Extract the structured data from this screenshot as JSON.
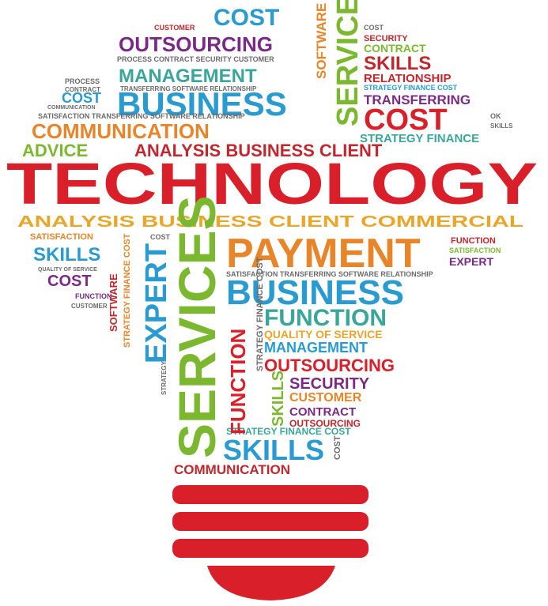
{
  "palette": {
    "red": "#d9202a",
    "green": "#7cb82f",
    "blue": "#2a9bd1",
    "orange": "#e8852a",
    "purple": "#7a2a84",
    "teal": "#3aa69a",
    "gray": "#6b6b6b",
    "darkred": "#c1272d"
  },
  "words": {
    "technology": "TECHNOLOGY",
    "cost_top": "COST",
    "customer_top": "CUSTOMER",
    "skills_tiny": "SKILLS",
    "process_v": "PROCESS",
    "software_v": "SOFTWARE",
    "outsourcing_top": "OUTSOURCING",
    "process_line": "PROCESS CONTRACT SECURITY CUSTOMER",
    "transferring_line": "TRANSFERRING SOFTWARE RELATIONSHIP",
    "management_top": "MANAGEMENT",
    "satisfaction_line": "SATISFACTION TRANSFERRING SOFTWARE RELATIONSHIP",
    "business_top": "BUSINESS",
    "services_top_v": "SERVICES",
    "software_top_v": "SOFTWARE",
    "ok_1": "OK",
    "cost_r1": "COST",
    "customer_r1": "CUSTOMER",
    "security_r": "SECURITY",
    "contract_r": "CONTRACT",
    "skills_r": "SKILLS",
    "ok_2": "OK",
    "relationship_r": "RELATIONSHIP",
    "strategy_finance_cost_r": "STRATEGY FINANCE COST",
    "transferring_r": "TRANSFERRING",
    "cost_big_r": "COST",
    "ok_3": "OK",
    "cost_small_r": "COST",
    "skills_small_r": "SKILLS",
    "strategy_finance": "STRATEGY FINANCE",
    "process_l": "PROCESS",
    "contract_l": "CONTRACT",
    "cost_l": "COST",
    "communication_l": "COMMUNICATION",
    "satisfaction_l2": "SATISFACTION TRANSFERRING SOFTWARE RELATIONSHIP",
    "communication_big": "COMMUNICATION",
    "advice": "ADVICE",
    "analysis_business_client": "ANALYSIS BUSINESS CLIENT",
    "analysis_line": "ANALYSIS BUSINESS CLIENT COMMERCIAL",
    "satisfaction_small": "SATISFACTION",
    "cost_mid": "COST",
    "skills_left": "SKILLS",
    "quality_small": "QUALITY OF SERVICE",
    "cost_left": "COST",
    "function_left": "FUNCTION",
    "customer_left": "CUSTOMER",
    "software_left_v": "SOFTWARE",
    "strategy_finance_cost_v": "STRATEGY FINANCE COST",
    "expert_v": "EXPERT",
    "services_big_v": "SERVICES",
    "payment": "PAYMENT",
    "function_r": "FUNCTION",
    "satisfaction_r": "SATISFACTION",
    "expert_r": "EXPERT",
    "satisfaction_line2": "SATISFACTION TRANSFERRING SOFTWARE RELATIONSHIP",
    "business_big": "BUSINESS",
    "function_big": "FUNCTION",
    "quality_of_service": "QUALITY OF SERVICE",
    "management_mid": "MANAGEMENT",
    "outsourcing_mid": "OUTSOURCING",
    "security_mid": "SECURITY",
    "customer_mid": "CUSTOMER",
    "contract_mid": "CONTRACT",
    "outsourcing_small": "OUTSOURCING",
    "strategy_finance_cost": "STRATEGY FINANCE COST",
    "function_v": "FUNCTION",
    "strategy_finance_cost_v2": "STRATEGY FINANCE COST",
    "skills_v": "SKILLS",
    "cost_v": "COST",
    "skills_big": "SKILLS",
    "communication_bottom": "COMMUNICATION",
    "cost_bottom_small": "COST",
    "strategy_small_v": "STRATEGY"
  }
}
